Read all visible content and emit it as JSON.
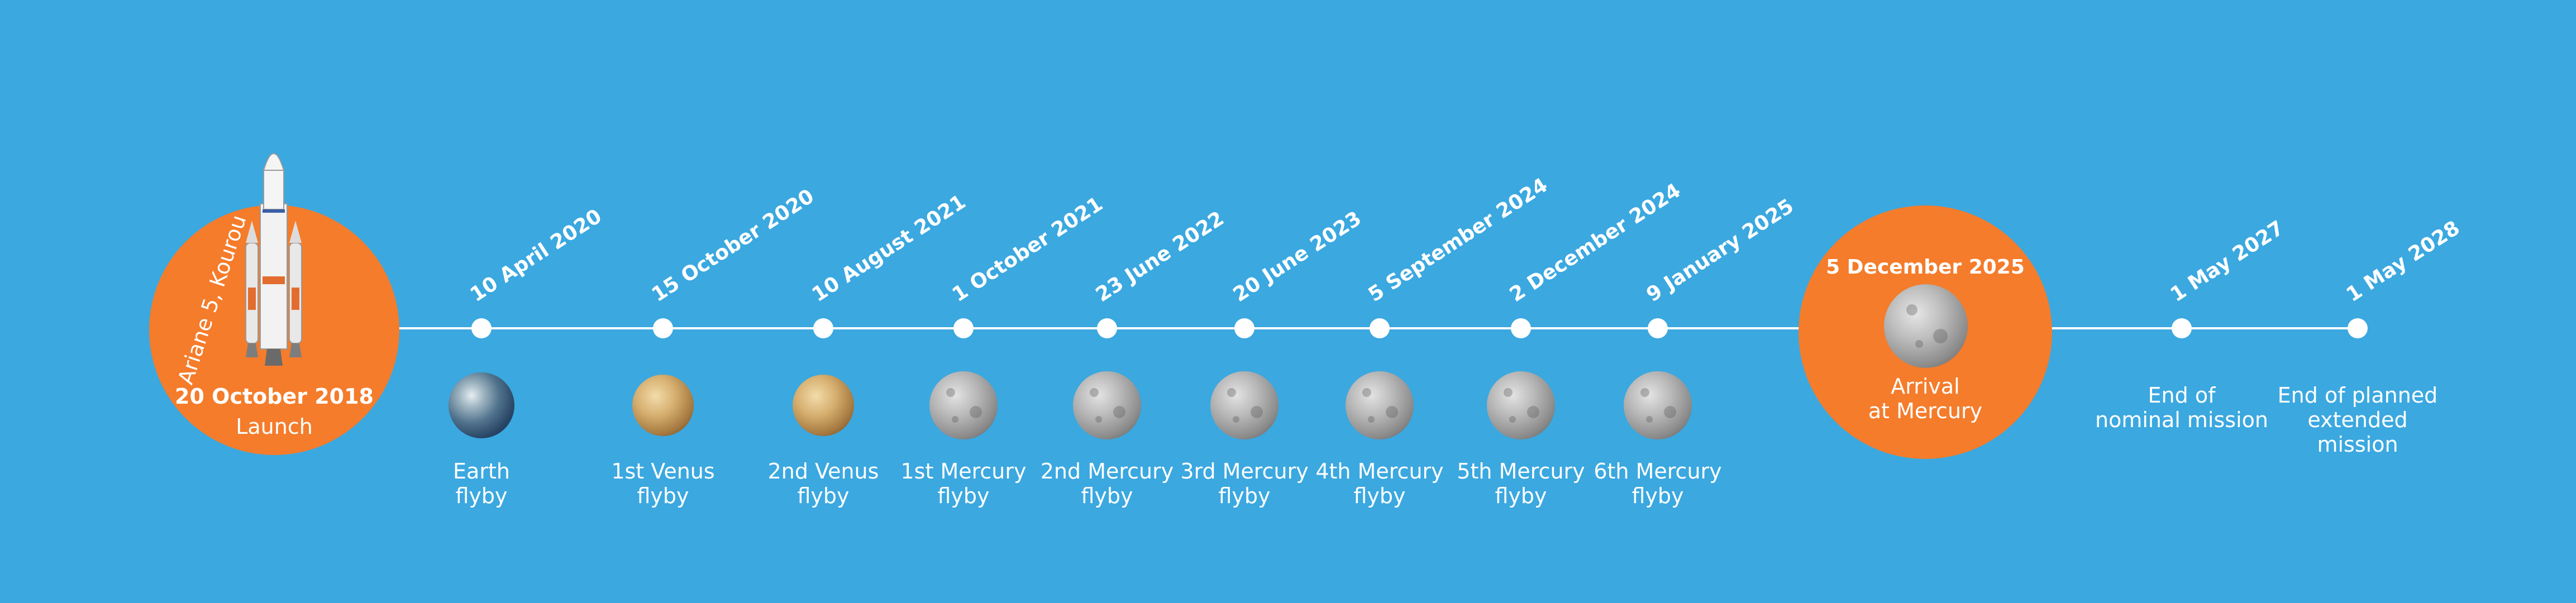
{
  "launch": {
    "site": "Ariane 5, Kourou",
    "date": "20 October 2018",
    "caption": "Launch"
  },
  "events": [
    {
      "date": "10 April 2020",
      "caption": [
        "Earth",
        "flyby"
      ],
      "body": "earth-icon"
    },
    {
      "date": "15 October 2020",
      "caption": [
        "1st Venus",
        "flyby"
      ],
      "body": "venus-icon"
    },
    {
      "date": "10 August 2021",
      "caption": [
        "2nd Venus",
        "flyby"
      ],
      "body": "venus-icon"
    },
    {
      "date": "1 October 2021",
      "caption": [
        "1st Mercury",
        "flyby"
      ],
      "body": "mercury-icon"
    },
    {
      "date": "23 June 2022",
      "caption": [
        "2nd Mercury",
        "flyby"
      ],
      "body": "mercury-icon"
    },
    {
      "date": "20 June 2023",
      "caption": [
        "3rd Mercury",
        "flyby"
      ],
      "body": "mercury-icon"
    },
    {
      "date": "5 September 2024",
      "caption": [
        "4th Mercury",
        "flyby"
      ],
      "body": "mercury-icon"
    },
    {
      "date": "2 December 2024",
      "caption": [
        "5th Mercury",
        "flyby"
      ],
      "body": "mercury-icon"
    },
    {
      "date": "9 January 2025",
      "caption": [
        "6th Mercury",
        "flyby"
      ],
      "body": "mercury-icon"
    }
  ],
  "arrival": {
    "date": "5 December 2025",
    "caption": [
      "Arrival",
      "at Mercury"
    ]
  },
  "mission_end": [
    {
      "date": "1 May 2027",
      "caption": [
        "End of",
        "nominal mission"
      ]
    },
    {
      "date": "1 May 2028",
      "caption": [
        "End of planned",
        "extended",
        "mission"
      ]
    }
  ],
  "colors": {
    "background": "#3ba8e0",
    "accent": "#f47c2b",
    "text": "#ffffff"
  }
}
